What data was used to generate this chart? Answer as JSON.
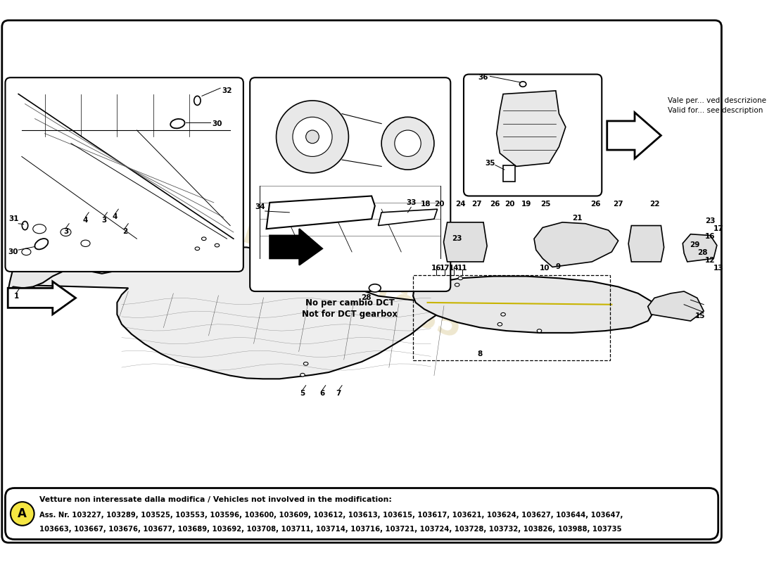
{
  "bg_color": "#ffffff",
  "border_color": "#000000",
  "note_dct_line1": "No per cambio DCT",
  "note_dct_line2": "Not for DCT gearbox",
  "note_valid_line1": "Vale per... vedi descrizione",
  "note_valid_line2": "Valid for... see description",
  "footer_circle_label": "A",
  "footer_circle_color": "#f5e642",
  "footer_title": "Vetture non interessate dalla modifica / Vehicles not involved in the modification:",
  "footer_line1": "Ass. Nr. 103227, 103289, 103525, 103553, 103596, 103600, 103609, 103612, 103613, 103615, 103617, 103621, 103624, 103627, 103644, 103647,",
  "footer_line2": "103663, 103667, 103676, 103677, 103689, 103692, 103708, 103711, 103714, 103716, 103721, 103724, 103728, 103732, 103826, 103988, 103735",
  "watermark_color": "#c8b060",
  "watermark_alpha": 0.3,
  "wm_line1": "a possibility for part",
  "wm_line2": "number 1985"
}
